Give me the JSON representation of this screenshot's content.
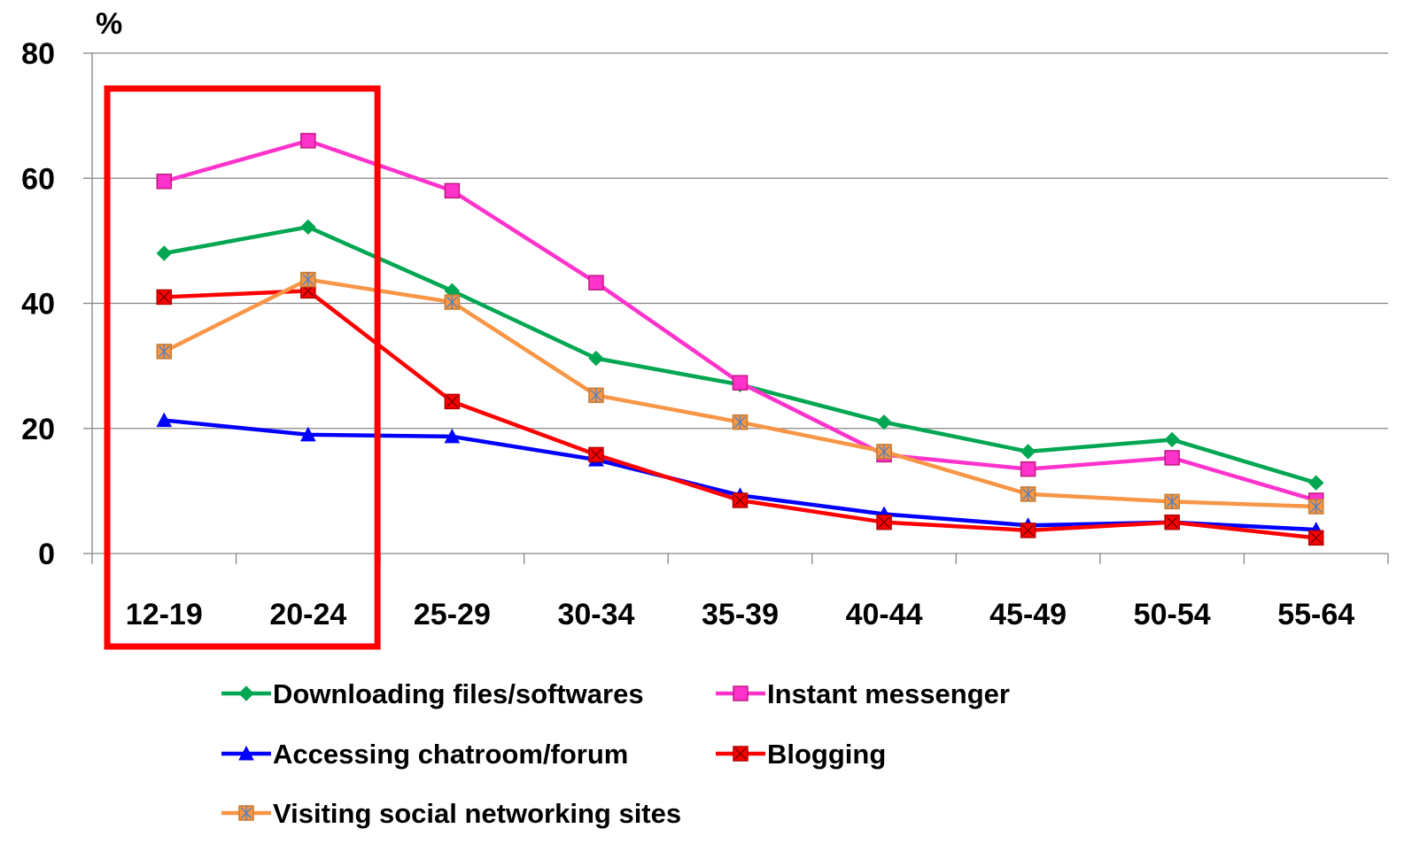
{
  "chart_data": {
    "type": "line",
    "ylabel": "%",
    "ylim": [
      0,
      80
    ],
    "yticks": [
      0,
      20,
      40,
      60,
      80
    ],
    "categories": [
      "12-19",
      "20-24",
      "25-29",
      "30-34",
      "35-39",
      "40-44",
      "45-49",
      "50-54",
      "55-64"
    ],
    "grid": "horizontal",
    "legend_placement": "bottom",
    "highlight": {
      "categories": [
        "12-19",
        "20-24"
      ],
      "color": "#ff0000"
    },
    "series": [
      {
        "name": "Downloading files/softwares",
        "color": "#00a651",
        "marker": "diamond",
        "values": [
          48,
          52.2,
          42,
          31.2,
          27,
          21,
          16.3,
          18.2,
          11.3
        ]
      },
      {
        "name": "Instant messenger",
        "color": "#ff33cc",
        "marker": "square",
        "values": [
          59.5,
          66,
          58,
          43.3,
          27.3,
          15.8,
          13.5,
          15.3,
          8.5
        ]
      },
      {
        "name": "Accessing chatroom/forum",
        "color": "#0000ff",
        "marker": "triangle",
        "values": [
          21.3,
          19,
          18.7,
          15,
          9.3,
          6.3,
          4.5,
          5,
          3.8
        ]
      },
      {
        "name": "Blogging",
        "color": "#ff0000",
        "marker": "square-x",
        "values": [
          41,
          42,
          24.3,
          15.8,
          8.5,
          5,
          3.7,
          5,
          2.5
        ]
      },
      {
        "name": "Visiting social networking sites",
        "color": "#f79646",
        "marker": "square-star",
        "values": [
          32.3,
          43.8,
          40.2,
          25.3,
          21,
          16.3,
          9.5,
          8.3,
          7.5
        ]
      }
    ]
  }
}
